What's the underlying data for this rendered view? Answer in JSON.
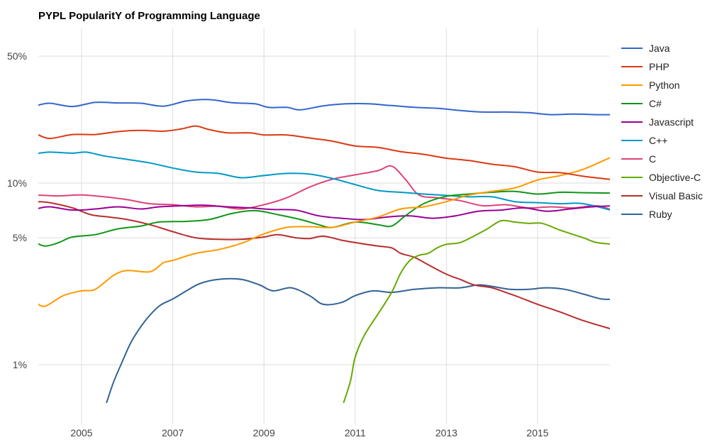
{
  "chart_data": {
    "type": "line",
    "title": "PYPL PopularitY of Programming Language",
    "xlabel": "",
    "ylabel": "",
    "y_scale": "log",
    "ylim": [
      0.6,
      60
    ],
    "xlim": [
      2004.0,
      2016.7
    ],
    "y_ticks": [
      {
        "value": 1,
        "label": "1%"
      },
      {
        "value": 5,
        "label": "5%"
      },
      {
        "value": 10,
        "label": "10%"
      },
      {
        "value": 50,
        "label": "50%"
      }
    ],
    "x_ticks": [
      {
        "value": 2005,
        "label": "2005"
      },
      {
        "value": 2007,
        "label": "2007"
      },
      {
        "value": 2009,
        "label": "2009"
      },
      {
        "value": 2011,
        "label": "2011"
      },
      {
        "value": 2013,
        "label": "2013"
      },
      {
        "value": 2015,
        "label": "2015"
      }
    ],
    "grid": "vertical",
    "legend_position": "right",
    "series": [
      {
        "name": "Java",
        "color": "#3366cc",
        "points": [
          [
            2004.0,
            26.6
          ],
          [
            2004.3,
            27.5
          ],
          [
            2004.8,
            26.4
          ],
          [
            2005.3,
            27.8
          ],
          [
            2005.8,
            27.6
          ],
          [
            2006.3,
            27.5
          ],
          [
            2006.8,
            26.5
          ],
          [
            2007.3,
            28.3
          ],
          [
            2007.8,
            28.8
          ],
          [
            2008.3,
            27.7
          ],
          [
            2008.8,
            27.3
          ],
          [
            2009.1,
            26.1
          ],
          [
            2009.5,
            26.1
          ],
          [
            2009.8,
            25.3
          ],
          [
            2010.3,
            26.6
          ],
          [
            2010.8,
            27.3
          ],
          [
            2011.3,
            27.3
          ],
          [
            2011.8,
            26.7
          ],
          [
            2012.3,
            26.1
          ],
          [
            2012.8,
            25.8
          ],
          [
            2013.3,
            25.1
          ],
          [
            2013.8,
            24.6
          ],
          [
            2014.3,
            24.6
          ],
          [
            2014.8,
            24.4
          ],
          [
            2015.3,
            23.8
          ],
          [
            2015.8,
            24.0
          ],
          [
            2016.3,
            23.8
          ],
          [
            2016.7,
            23.8
          ]
        ]
      },
      {
        "name": "PHP",
        "color": "#dc3912",
        "points": [
          [
            2004.0,
            18.7
          ],
          [
            2004.3,
            17.6
          ],
          [
            2004.8,
            18.5
          ],
          [
            2005.3,
            18.5
          ],
          [
            2005.8,
            19.2
          ],
          [
            2006.3,
            19.5
          ],
          [
            2006.8,
            19.3
          ],
          [
            2007.2,
            19.9
          ],
          [
            2007.5,
            20.6
          ],
          [
            2007.8,
            19.7
          ],
          [
            2008.2,
            18.9
          ],
          [
            2008.7,
            18.9
          ],
          [
            2009.0,
            18.4
          ],
          [
            2009.5,
            18.4
          ],
          [
            2010.0,
            17.7
          ],
          [
            2010.5,
            17.0
          ],
          [
            2011.0,
            16.0
          ],
          [
            2011.5,
            15.7
          ],
          [
            2012.0,
            14.9
          ],
          [
            2012.5,
            14.4
          ],
          [
            2013.0,
            13.7
          ],
          [
            2013.5,
            13.3
          ],
          [
            2014.0,
            12.7
          ],
          [
            2014.5,
            12.3
          ],
          [
            2015.0,
            11.5
          ],
          [
            2015.5,
            11.4
          ],
          [
            2016.0,
            10.9
          ],
          [
            2016.7,
            10.4
          ]
        ]
      },
      {
        "name": "Python",
        "color": "#ff9900",
        "points": [
          [
            2004.0,
            2.2
          ],
          [
            2004.2,
            2.1
          ],
          [
            2004.6,
            2.4
          ],
          [
            2005.0,
            2.55
          ],
          [
            2005.3,
            2.6
          ],
          [
            2005.7,
            3.1
          ],
          [
            2006.0,
            3.3
          ],
          [
            2006.5,
            3.25
          ],
          [
            2006.8,
            3.65
          ],
          [
            2007.0,
            3.75
          ],
          [
            2007.5,
            4.1
          ],
          [
            2008.0,
            4.3
          ],
          [
            2008.5,
            4.65
          ],
          [
            2009.0,
            5.25
          ],
          [
            2009.5,
            5.7
          ],
          [
            2010.0,
            5.75
          ],
          [
            2010.5,
            5.7
          ],
          [
            2011.0,
            6.1
          ],
          [
            2011.5,
            6.5
          ],
          [
            2012.0,
            7.2
          ],
          [
            2012.5,
            7.4
          ],
          [
            2013.0,
            7.9
          ],
          [
            2013.5,
            8.6
          ],
          [
            2014.0,
            9.0
          ],
          [
            2014.5,
            9.4
          ],
          [
            2015.0,
            10.4
          ],
          [
            2015.5,
            11.0
          ],
          [
            2016.0,
            11.9
          ],
          [
            2016.7,
            14.2
          ]
        ]
      },
      {
        "name": "C#",
        "color": "#109618",
        "points": [
          [
            2004.0,
            4.7
          ],
          [
            2004.2,
            4.5
          ],
          [
            2004.5,
            4.7
          ],
          [
            2004.8,
            5.05
          ],
          [
            2005.3,
            5.2
          ],
          [
            2005.8,
            5.6
          ],
          [
            2006.3,
            5.8
          ],
          [
            2006.7,
            6.1
          ],
          [
            2007.3,
            6.15
          ],
          [
            2007.8,
            6.3
          ],
          [
            2008.3,
            6.8
          ],
          [
            2008.8,
            7.05
          ],
          [
            2009.3,
            6.7
          ],
          [
            2009.8,
            6.3
          ],
          [
            2010.2,
            5.9
          ],
          [
            2010.5,
            5.7
          ],
          [
            2011.0,
            6.1
          ],
          [
            2011.5,
            5.9
          ],
          [
            2011.8,
            5.8
          ],
          [
            2012.1,
            6.6
          ],
          [
            2012.5,
            7.7
          ],
          [
            2013.0,
            8.45
          ],
          [
            2013.5,
            8.7
          ],
          [
            2014.0,
            8.9
          ],
          [
            2014.5,
            9.0
          ],
          [
            2015.0,
            8.7
          ],
          [
            2015.5,
            8.9
          ],
          [
            2016.0,
            8.85
          ],
          [
            2016.7,
            8.8
          ]
        ]
      },
      {
        "name": "Javascript",
        "color": "#990099",
        "points": [
          [
            2004.0,
            7.2
          ],
          [
            2004.3,
            7.4
          ],
          [
            2004.8,
            7.1
          ],
          [
            2005.3,
            7.2
          ],
          [
            2005.8,
            7.4
          ],
          [
            2006.3,
            7.2
          ],
          [
            2006.7,
            7.4
          ],
          [
            2007.2,
            7.5
          ],
          [
            2007.7,
            7.55
          ],
          [
            2008.2,
            7.4
          ],
          [
            2008.7,
            7.3
          ],
          [
            2009.2,
            7.15
          ],
          [
            2009.7,
            7.1
          ],
          [
            2010.2,
            6.6
          ],
          [
            2010.7,
            6.4
          ],
          [
            2011.2,
            6.3
          ],
          [
            2011.7,
            6.5
          ],
          [
            2012.2,
            6.6
          ],
          [
            2012.7,
            6.4
          ],
          [
            2013.2,
            6.6
          ],
          [
            2013.7,
            7.0
          ],
          [
            2014.2,
            7.1
          ],
          [
            2014.7,
            7.3
          ],
          [
            2015.2,
            7.0
          ],
          [
            2015.7,
            7.2
          ],
          [
            2016.2,
            7.4
          ],
          [
            2016.7,
            7.5
          ]
        ]
      },
      {
        "name": "C++",
        "color": "#0099c6",
        "points": [
          [
            2004.0,
            14.5
          ],
          [
            2004.3,
            14.8
          ],
          [
            2004.8,
            14.6
          ],
          [
            2005.1,
            14.8
          ],
          [
            2005.5,
            14.1
          ],
          [
            2006.0,
            13.5
          ],
          [
            2006.5,
            12.9
          ],
          [
            2007.0,
            12.1
          ],
          [
            2007.5,
            11.5
          ],
          [
            2008.0,
            11.3
          ],
          [
            2008.5,
            10.7
          ],
          [
            2009.0,
            11.0
          ],
          [
            2009.5,
            11.3
          ],
          [
            2010.0,
            11.2
          ],
          [
            2010.5,
            10.6
          ],
          [
            2011.0,
            9.8
          ],
          [
            2011.5,
            9.1
          ],
          [
            2012.0,
            8.9
          ],
          [
            2012.5,
            8.7
          ],
          [
            2013.0,
            8.55
          ],
          [
            2013.5,
            8.4
          ],
          [
            2014.0,
            8.4
          ],
          [
            2014.5,
            7.9
          ],
          [
            2015.0,
            7.8
          ],
          [
            2015.5,
            7.7
          ],
          [
            2016.0,
            7.7
          ],
          [
            2016.7,
            7.0
          ]
        ]
      },
      {
        "name": "C",
        "color": "#dd4477",
        "points": [
          [
            2004.0,
            8.6
          ],
          [
            2004.5,
            8.5
          ],
          [
            2005.0,
            8.6
          ],
          [
            2005.5,
            8.4
          ],
          [
            2006.0,
            8.1
          ],
          [
            2006.5,
            7.7
          ],
          [
            2007.0,
            7.6
          ],
          [
            2007.5,
            7.4
          ],
          [
            2008.0,
            7.45
          ],
          [
            2008.5,
            7.2
          ],
          [
            2009.0,
            7.6
          ],
          [
            2009.5,
            8.3
          ],
          [
            2010.0,
            9.5
          ],
          [
            2010.5,
            10.5
          ],
          [
            2011.0,
            11.1
          ],
          [
            2011.5,
            11.7
          ],
          [
            2011.8,
            12.4
          ],
          [
            2012.1,
            10.5
          ],
          [
            2012.4,
            8.6
          ],
          [
            2012.8,
            8.3
          ],
          [
            2013.3,
            8.0
          ],
          [
            2013.8,
            7.5
          ],
          [
            2014.3,
            7.6
          ],
          [
            2014.8,
            7.3
          ],
          [
            2015.3,
            7.4
          ],
          [
            2015.8,
            7.3
          ],
          [
            2016.3,
            7.5
          ],
          [
            2016.7,
            7.0
          ]
        ]
      },
      {
        "name": "Objective-C",
        "color": "#66aa00",
        "points": [
          [
            2010.75,
            0.62
          ],
          [
            2010.9,
            0.82
          ],
          [
            2011.0,
            1.1
          ],
          [
            2011.2,
            1.45
          ],
          [
            2011.5,
            1.9
          ],
          [
            2011.8,
            2.5
          ],
          [
            2012.0,
            3.2
          ],
          [
            2012.2,
            3.75
          ],
          [
            2012.4,
            4.0
          ],
          [
            2012.6,
            4.1
          ],
          [
            2012.8,
            4.4
          ],
          [
            2013.0,
            4.6
          ],
          [
            2013.3,
            4.7
          ],
          [
            2013.6,
            5.1
          ],
          [
            2013.9,
            5.6
          ],
          [
            2014.2,
            6.2
          ],
          [
            2014.5,
            6.1
          ],
          [
            2014.8,
            6.0
          ],
          [
            2015.1,
            6.0
          ],
          [
            2015.5,
            5.5
          ],
          [
            2016.0,
            5.0
          ],
          [
            2016.3,
            4.7
          ],
          [
            2016.7,
            4.6
          ]
        ]
      },
      {
        "name": "Visual Basic",
        "color": "#b82e2e",
        "points": [
          [
            2004.0,
            7.9
          ],
          [
            2004.3,
            7.8
          ],
          [
            2004.8,
            7.3
          ],
          [
            2005.2,
            6.7
          ],
          [
            2005.6,
            6.5
          ],
          [
            2006.0,
            6.3
          ],
          [
            2006.5,
            5.9
          ],
          [
            2007.0,
            5.4
          ],
          [
            2007.5,
            5.0
          ],
          [
            2008.0,
            4.9
          ],
          [
            2008.5,
            4.9
          ],
          [
            2009.0,
            5.05
          ],
          [
            2009.3,
            5.2
          ],
          [
            2009.7,
            5.0
          ],
          [
            2010.0,
            4.95
          ],
          [
            2010.3,
            5.1
          ],
          [
            2010.7,
            4.85
          ],
          [
            2011.0,
            4.7
          ],
          [
            2011.5,
            4.5
          ],
          [
            2011.8,
            4.4
          ],
          [
            2012.0,
            4.1
          ],
          [
            2012.3,
            3.9
          ],
          [
            2012.6,
            3.55
          ],
          [
            2013.0,
            3.15
          ],
          [
            2013.3,
            2.95
          ],
          [
            2013.6,
            2.75
          ],
          [
            2014.0,
            2.65
          ],
          [
            2014.3,
            2.5
          ],
          [
            2014.6,
            2.35
          ],
          [
            2015.0,
            2.15
          ],
          [
            2015.5,
            1.95
          ],
          [
            2016.0,
            1.75
          ],
          [
            2016.7,
            1.55
          ]
        ]
      },
      {
        "name": "Ruby",
        "color": "#316395",
        "points": [
          [
            2005.55,
            0.62
          ],
          [
            2005.7,
            0.8
          ],
          [
            2005.9,
            1.05
          ],
          [
            2006.1,
            1.35
          ],
          [
            2006.4,
            1.75
          ],
          [
            2006.7,
            2.1
          ],
          [
            2007.0,
            2.3
          ],
          [
            2007.3,
            2.55
          ],
          [
            2007.6,
            2.8
          ],
          [
            2008.0,
            2.95
          ],
          [
            2008.5,
            2.95
          ],
          [
            2008.9,
            2.75
          ],
          [
            2009.2,
            2.55
          ],
          [
            2009.6,
            2.65
          ],
          [
            2010.0,
            2.4
          ],
          [
            2010.3,
            2.15
          ],
          [
            2010.7,
            2.2
          ],
          [
            2011.0,
            2.4
          ],
          [
            2011.4,
            2.55
          ],
          [
            2011.8,
            2.5
          ],
          [
            2012.3,
            2.6
          ],
          [
            2012.8,
            2.65
          ],
          [
            2013.3,
            2.65
          ],
          [
            2013.7,
            2.75
          ],
          [
            2014.0,
            2.7
          ],
          [
            2014.4,
            2.6
          ],
          [
            2014.8,
            2.6
          ],
          [
            2015.2,
            2.65
          ],
          [
            2015.6,
            2.6
          ],
          [
            2016.0,
            2.45
          ],
          [
            2016.4,
            2.3
          ],
          [
            2016.7,
            2.3
          ]
        ]
      }
    ]
  }
}
